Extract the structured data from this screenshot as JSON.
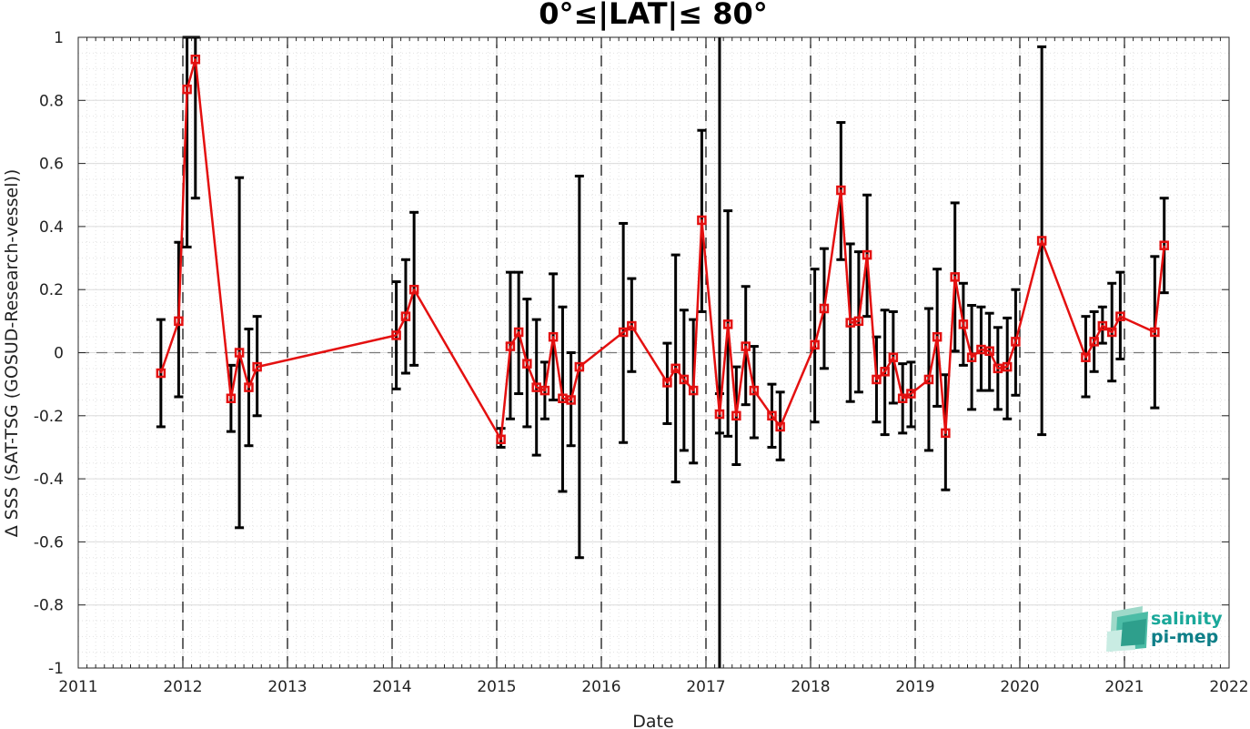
{
  "chart_data": {
    "type": "line",
    "title": "0°≤|LAT|≤ 80°",
    "xlabel": "Date",
    "ylabel": "Δ SSS (SAT-TSG (GOSUD-Research-vessel))",
    "xlim": [
      2011,
      2022
    ],
    "ylim": [
      -1,
      1
    ],
    "x_ticks": [
      "2011",
      "2012",
      "2013",
      "2014",
      "2015",
      "2016",
      "2017",
      "2018",
      "2019",
      "2020",
      "2021",
      "2022"
    ],
    "y_ticks": [
      "1",
      "0.8",
      "0.6",
      "0.4",
      "0.2",
      "0",
      "-0.2",
      "-0.4",
      "-0.6",
      "-0.8",
      "-1"
    ],
    "grid": true,
    "reference_line_y": 0,
    "year_boundaries": [
      2012,
      2013,
      2014,
      2015,
      2016,
      2017,
      2018,
      2019,
      2020,
      2021
    ],
    "highlight_line_x": 2017.13,
    "series": [
      {
        "color": "#e41010",
        "errorbar_color": "#000000",
        "points": [
          {
            "x": 2011.79,
            "y": -0.065,
            "lo": -0.235,
            "hi": 0.105
          },
          {
            "x": 2011.96,
            "y": 0.1,
            "lo": -0.14,
            "hi": 0.35
          },
          {
            "x": 2012.04,
            "y": 0.835,
            "lo": 0.335,
            "hi": 1.0
          },
          {
            "x": 2012.12,
            "y": 0.93,
            "lo": 0.49,
            "hi": 1.0
          },
          {
            "x": 2012.46,
            "y": -0.145,
            "lo": -0.25,
            "hi": -0.04
          },
          {
            "x": 2012.54,
            "y": 0.0,
            "lo": -0.555,
            "hi": 0.555
          },
          {
            "x": 2012.63,
            "y": -0.11,
            "lo": -0.295,
            "hi": 0.075
          },
          {
            "x": 2012.71,
            "y": -0.045,
            "lo": -0.2,
            "hi": 0.115
          },
          {
            "x": 2014.04,
            "y": 0.055,
            "lo": -0.115,
            "hi": 0.225
          },
          {
            "x": 2014.13,
            "y": 0.115,
            "lo": -0.065,
            "hi": 0.295
          },
          {
            "x": 2014.21,
            "y": 0.2,
            "lo": -0.04,
            "hi": 0.445
          },
          {
            "x": 2015.04,
            "y": -0.275,
            "lo": -0.3,
            "hi": -0.24
          },
          {
            "x": 2015.13,
            "y": 0.02,
            "lo": -0.21,
            "hi": 0.255
          },
          {
            "x": 2015.21,
            "y": 0.065,
            "lo": -0.13,
            "hi": 0.255
          },
          {
            "x": 2015.29,
            "y": -0.035,
            "lo": -0.235,
            "hi": 0.17
          },
          {
            "x": 2015.38,
            "y": -0.11,
            "lo": -0.325,
            "hi": 0.105
          },
          {
            "x": 2015.46,
            "y": -0.12,
            "lo": -0.21,
            "hi": -0.03
          },
          {
            "x": 2015.54,
            "y": 0.05,
            "lo": -0.15,
            "hi": 0.25
          },
          {
            "x": 2015.63,
            "y": -0.145,
            "lo": -0.44,
            "hi": 0.145
          },
          {
            "x": 2015.71,
            "y": -0.15,
            "lo": -0.295,
            "hi": 0.0
          },
          {
            "x": 2015.79,
            "y": -0.045,
            "lo": -0.65,
            "hi": 0.56
          },
          {
            "x": 2016.21,
            "y": 0.065,
            "lo": -0.285,
            "hi": 0.41
          },
          {
            "x": 2016.29,
            "y": 0.085,
            "lo": -0.06,
            "hi": 0.235
          },
          {
            "x": 2016.63,
            "y": -0.095,
            "lo": -0.225,
            "hi": 0.03
          },
          {
            "x": 2016.71,
            "y": -0.05,
            "lo": -0.41,
            "hi": 0.31
          },
          {
            "x": 2016.79,
            "y": -0.085,
            "lo": -0.31,
            "hi": 0.135
          },
          {
            "x": 2016.88,
            "y": -0.12,
            "lo": -0.35,
            "hi": 0.105
          },
          {
            "x": 2016.96,
            "y": 0.42,
            "lo": 0.13,
            "hi": 0.705
          },
          {
            "x": 2017.13,
            "y": -0.195,
            "lo": -0.255,
            "hi": -0.13
          },
          {
            "x": 2017.21,
            "y": 0.09,
            "lo": -0.265,
            "hi": 0.45
          },
          {
            "x": 2017.29,
            "y": -0.2,
            "lo": -0.355,
            "hi": -0.045
          },
          {
            "x": 2017.38,
            "y": 0.02,
            "lo": -0.165,
            "hi": 0.21
          },
          {
            "x": 2017.46,
            "y": -0.12,
            "lo": -0.27,
            "hi": 0.02
          },
          {
            "x": 2017.63,
            "y": -0.2,
            "lo": -0.3,
            "hi": -0.1
          },
          {
            "x": 2017.71,
            "y": -0.235,
            "lo": -0.34,
            "hi": -0.125
          },
          {
            "x": 2018.04,
            "y": 0.025,
            "lo": -0.22,
            "hi": 0.265
          },
          {
            "x": 2018.13,
            "y": 0.14,
            "lo": -0.05,
            "hi": 0.33
          },
          {
            "x": 2018.29,
            "y": 0.515,
            "lo": 0.295,
            "hi": 0.73
          },
          {
            "x": 2018.38,
            "y": 0.095,
            "lo": -0.155,
            "hi": 0.345
          },
          {
            "x": 2018.46,
            "y": 0.1,
            "lo": -0.125,
            "hi": 0.32
          },
          {
            "x": 2018.54,
            "y": 0.31,
            "lo": 0.115,
            "hi": 0.5
          },
          {
            "x": 2018.63,
            "y": -0.085,
            "lo": -0.22,
            "hi": 0.05
          },
          {
            "x": 2018.71,
            "y": -0.06,
            "lo": -0.26,
            "hi": 0.135
          },
          {
            "x": 2018.79,
            "y": -0.015,
            "lo": -0.16,
            "hi": 0.13
          },
          {
            "x": 2018.88,
            "y": -0.145,
            "lo": -0.255,
            "hi": -0.035
          },
          {
            "x": 2018.96,
            "y": -0.13,
            "lo": -0.235,
            "hi": -0.03
          },
          {
            "x": 2019.13,
            "y": -0.085,
            "lo": -0.31,
            "hi": 0.14
          },
          {
            "x": 2019.21,
            "y": 0.05,
            "lo": -0.17,
            "hi": 0.265
          },
          {
            "x": 2019.29,
            "y": -0.255,
            "lo": -0.435,
            "hi": -0.07
          },
          {
            "x": 2019.38,
            "y": 0.24,
            "lo": 0.005,
            "hi": 0.475
          },
          {
            "x": 2019.46,
            "y": 0.09,
            "lo": -0.04,
            "hi": 0.22
          },
          {
            "x": 2019.54,
            "y": -0.015,
            "lo": -0.18,
            "hi": 0.15
          },
          {
            "x": 2019.63,
            "y": 0.01,
            "lo": -0.12,
            "hi": 0.145
          },
          {
            "x": 2019.71,
            "y": 0.005,
            "lo": -0.12,
            "hi": 0.125
          },
          {
            "x": 2019.79,
            "y": -0.05,
            "lo": -0.18,
            "hi": 0.08
          },
          {
            "x": 2019.88,
            "y": -0.045,
            "lo": -0.21,
            "hi": 0.11
          },
          {
            "x": 2019.96,
            "y": 0.035,
            "lo": -0.135,
            "hi": 0.2
          },
          {
            "x": 2020.21,
            "y": 0.355,
            "lo": -0.26,
            "hi": 0.97
          },
          {
            "x": 2020.63,
            "y": -0.015,
            "lo": -0.14,
            "hi": 0.115
          },
          {
            "x": 2020.71,
            "y": 0.035,
            "lo": -0.06,
            "hi": 0.13
          },
          {
            "x": 2020.79,
            "y": 0.085,
            "lo": 0.03,
            "hi": 0.145
          },
          {
            "x": 2020.88,
            "y": 0.065,
            "lo": -0.09,
            "hi": 0.22
          },
          {
            "x": 2020.96,
            "y": 0.115,
            "lo": -0.02,
            "hi": 0.255
          },
          {
            "x": 2021.29,
            "y": 0.065,
            "lo": -0.175,
            "hi": 0.305
          },
          {
            "x": 2021.38,
            "y": 0.34,
            "lo": 0.19,
            "hi": 0.49
          }
        ]
      }
    ]
  },
  "logo": {
    "line1": "salinity",
    "line2": "pi-mep",
    "color1": "#1aa89a",
    "color2": "#0f7f88"
  }
}
